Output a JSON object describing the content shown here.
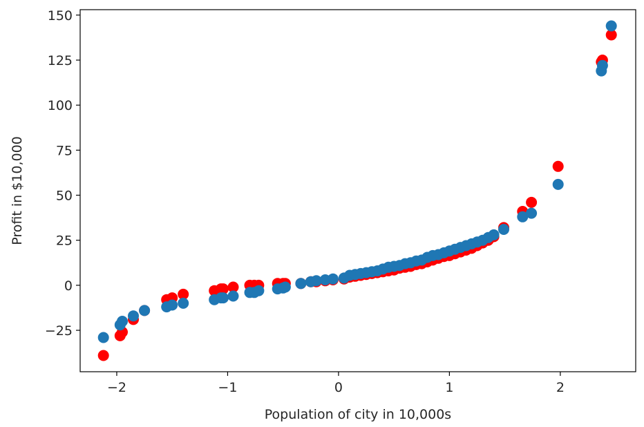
{
  "chart_data": {
    "type": "scatter",
    "xlabel": "Population of city in 10,000s",
    "ylabel": "Profit in $10,000",
    "xlim": [
      -2.33,
      2.68
    ],
    "ylim": [
      -48,
      153
    ],
    "xticks": [
      -2,
      -1,
      0,
      1,
      2
    ],
    "xtick_labels": [
      "−2",
      "−1",
      "0",
      "1",
      "2"
    ],
    "yticks": [
      -25,
      0,
      25,
      50,
      75,
      100,
      125,
      150
    ],
    "ytick_labels": [
      "−25",
      "0",
      "25",
      "50",
      "75",
      "100",
      "125",
      "150"
    ],
    "grid": false,
    "legend": "none",
    "series": [
      {
        "color": "#ff0000",
        "points": [
          [
            -2.12,
            -39
          ],
          [
            -1.97,
            -28
          ],
          [
            -1.95,
            -26
          ],
          [
            -1.85,
            -19
          ],
          [
            -1.75,
            -14
          ],
          [
            -1.55,
            -8
          ],
          [
            -1.5,
            -7
          ],
          [
            -1.4,
            -5
          ],
          [
            -1.12,
            -3
          ],
          [
            -1.06,
            -2
          ],
          [
            -1.04,
            -2
          ],
          [
            -0.95,
            -1
          ],
          [
            -0.8,
            0
          ],
          [
            -0.76,
            0
          ],
          [
            -0.72,
            0
          ],
          [
            -0.55,
            1
          ],
          [
            -0.5,
            1
          ],
          [
            -0.48,
            1
          ],
          [
            -0.34,
            1
          ],
          [
            -0.25,
            2
          ],
          [
            -0.2,
            2
          ],
          [
            -0.12,
            2.5
          ],
          [
            -0.05,
            3
          ],
          [
            0.05,
            3.5
          ],
          [
            0.1,
            4.5
          ],
          [
            0.15,
            5
          ],
          [
            0.2,
            5.5
          ],
          [
            0.25,
            6
          ],
          [
            0.3,
            6.5
          ],
          [
            0.35,
            7
          ],
          [
            0.4,
            7.5
          ],
          [
            0.45,
            8
          ],
          [
            0.5,
            8.5
          ],
          [
            0.55,
            9.5
          ],
          [
            0.6,
            10
          ],
          [
            0.65,
            10.5
          ],
          [
            0.7,
            11.5
          ],
          [
            0.75,
            12
          ],
          [
            0.8,
            13
          ],
          [
            0.85,
            14
          ],
          [
            0.9,
            15
          ],
          [
            0.95,
            16
          ],
          [
            1.0,
            16.5
          ],
          [
            1.05,
            17.5
          ],
          [
            1.1,
            18.5
          ],
          [
            1.15,
            19.5
          ],
          [
            1.2,
            20.5
          ],
          [
            1.25,
            22
          ],
          [
            1.3,
            23.5
          ],
          [
            1.35,
            25
          ],
          [
            1.4,
            27
          ],
          [
            1.49,
            32
          ],
          [
            1.66,
            41
          ],
          [
            1.74,
            46
          ],
          [
            1.98,
            66
          ],
          [
            2.37,
            124
          ],
          [
            2.38,
            125
          ],
          [
            2.46,
            139
          ]
        ]
      },
      {
        "color": "#1f77b4",
        "points": [
          [
            -2.12,
            -29
          ],
          [
            -1.97,
            -22
          ],
          [
            -1.95,
            -20
          ],
          [
            -1.85,
            -17
          ],
          [
            -1.75,
            -14
          ],
          [
            -1.55,
            -12
          ],
          [
            -1.5,
            -11
          ],
          [
            -1.4,
            -10
          ],
          [
            -1.12,
            -8
          ],
          [
            -1.06,
            -7
          ],
          [
            -1.04,
            -7
          ],
          [
            -0.95,
            -6
          ],
          [
            -0.8,
            -4
          ],
          [
            -0.76,
            -4
          ],
          [
            -0.72,
            -3
          ],
          [
            -0.55,
            -2
          ],
          [
            -0.5,
            -1.5
          ],
          [
            -0.48,
            -1
          ],
          [
            -0.34,
            1
          ],
          [
            -0.25,
            2
          ],
          [
            -0.2,
            2.5
          ],
          [
            -0.12,
            3
          ],
          [
            -0.05,
            3.5
          ],
          [
            0.05,
            4
          ],
          [
            0.1,
            5.5
          ],
          [
            0.15,
            6
          ],
          [
            0.2,
            6.5
          ],
          [
            0.25,
            7
          ],
          [
            0.3,
            7.5
          ],
          [
            0.35,
            8
          ],
          [
            0.4,
            9
          ],
          [
            0.45,
            10
          ],
          [
            0.5,
            10.5
          ],
          [
            0.55,
            11
          ],
          [
            0.6,
            12
          ],
          [
            0.65,
            12.5
          ],
          [
            0.7,
            13.5
          ],
          [
            0.75,
            14
          ],
          [
            0.8,
            15.5
          ],
          [
            0.85,
            16.5
          ],
          [
            0.9,
            17
          ],
          [
            0.95,
            18
          ],
          [
            1.0,
            19
          ],
          [
            1.05,
            20
          ],
          [
            1.1,
            21
          ],
          [
            1.15,
            22
          ],
          [
            1.2,
            23
          ],
          [
            1.25,
            24
          ],
          [
            1.3,
            25
          ],
          [
            1.35,
            26.5
          ],
          [
            1.4,
            28
          ],
          [
            1.49,
            31
          ],
          [
            1.66,
            38
          ],
          [
            1.74,
            40
          ],
          [
            1.98,
            56
          ],
          [
            2.37,
            119
          ],
          [
            2.38,
            122
          ],
          [
            2.46,
            144
          ]
        ]
      }
    ]
  }
}
